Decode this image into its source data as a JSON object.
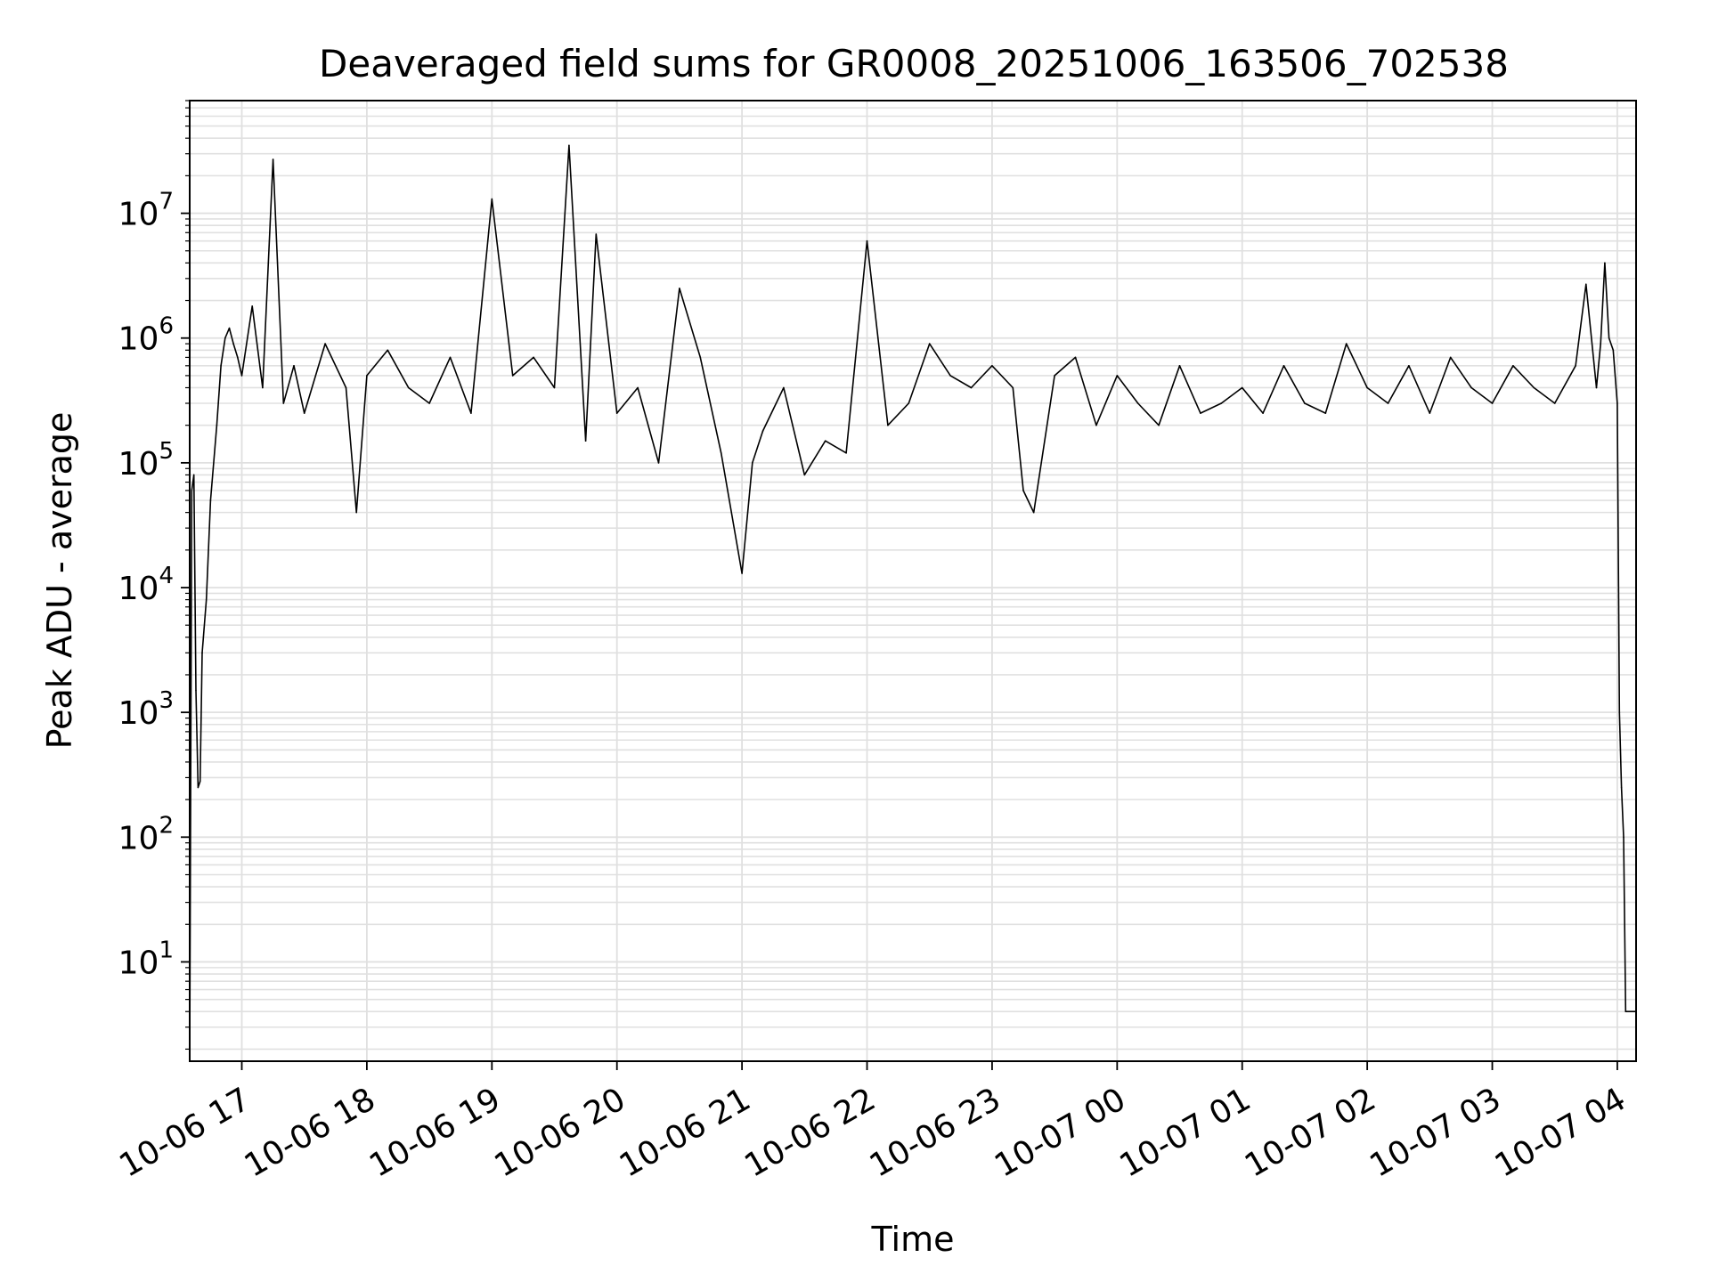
{
  "chart_data": {
    "type": "line",
    "title": "Deaveraged field sums for GR0008_20251006_163506_702538",
    "xlabel": "Time",
    "ylabel": "Peak ADU - average",
    "yscale": "log",
    "grid": true,
    "legend": "none",
    "line_color": "#000000",
    "grid_color": "#e0e0e0",
    "xlim": [
      "2025-10-06 16:35",
      "2025-10-07 04:09"
    ],
    "ylim": [
      1.6,
      80000000
    ],
    "x_ticks": [
      "10-06 17",
      "10-06 18",
      "10-06 19",
      "10-06 20",
      "10-06 21",
      "10-06 22",
      "10-06 23",
      "10-07 00",
      "10-07 01",
      "10-07 02",
      "10-07 03",
      "10-07 04"
    ],
    "y_ticks": [
      {
        "base": "10",
        "exp": "1"
      },
      {
        "base": "10",
        "exp": "2"
      },
      {
        "base": "10",
        "exp": "3"
      },
      {
        "base": "10",
        "exp": "4"
      },
      {
        "base": "10",
        "exp": "5"
      },
      {
        "base": "10",
        "exp": "6"
      },
      {
        "base": "10",
        "exp": "7"
      }
    ],
    "series": [
      {
        "x": [
          "2025-10-06 16:35",
          "2025-10-06 16:36",
          "2025-10-06 16:37",
          "2025-10-06 16:38",
          "2025-10-06 16:39",
          "2025-10-06 16:40",
          "2025-10-06 16:41",
          "2025-10-06 16:43",
          "2025-10-06 16:45",
          "2025-10-06 16:48",
          "2025-10-06 16:50",
          "2025-10-06 16:52",
          "2025-10-06 16:54",
          "2025-10-06 16:56",
          "2025-10-06 16:58",
          "2025-10-06 17:00",
          "2025-10-06 17:05",
          "2025-10-06 17:10",
          "2025-10-06 17:15",
          "2025-10-06 17:20",
          "2025-10-06 17:25",
          "2025-10-06 17:30",
          "2025-10-06 17:40",
          "2025-10-06 17:50",
          "2025-10-06 17:55",
          "2025-10-06 18:00",
          "2025-10-06 18:10",
          "2025-10-06 18:20",
          "2025-10-06 18:30",
          "2025-10-06 18:40",
          "2025-10-06 18:50",
          "2025-10-06 19:00",
          "2025-10-06 19:10",
          "2025-10-06 19:20",
          "2025-10-06 19:30",
          "2025-10-06 19:37",
          "2025-10-06 19:45",
          "2025-10-06 19:50",
          "2025-10-06 20:00",
          "2025-10-06 20:10",
          "2025-10-06 20:20",
          "2025-10-06 20:30",
          "2025-10-06 20:40",
          "2025-10-06 20:50",
          "2025-10-06 21:00",
          "2025-10-06 21:05",
          "2025-10-06 21:10",
          "2025-10-06 21:20",
          "2025-10-06 21:30",
          "2025-10-06 21:40",
          "2025-10-06 21:50",
          "2025-10-06 22:00",
          "2025-10-06 22:10",
          "2025-10-06 22:20",
          "2025-10-06 22:30",
          "2025-10-06 22:40",
          "2025-10-06 22:50",
          "2025-10-06 23:00",
          "2025-10-06 23:10",
          "2025-10-06 23:15",
          "2025-10-06 23:20",
          "2025-10-06 23:30",
          "2025-10-06 23:40",
          "2025-10-06 23:50",
          "2025-10-07 00:00",
          "2025-10-07 00:10",
          "2025-10-07 00:20",
          "2025-10-07 00:30",
          "2025-10-07 00:40",
          "2025-10-07 00:50",
          "2025-10-07 01:00",
          "2025-10-07 01:10",
          "2025-10-07 01:20",
          "2025-10-07 01:30",
          "2025-10-07 01:40",
          "2025-10-07 01:50",
          "2025-10-07 02:00",
          "2025-10-07 02:10",
          "2025-10-07 02:20",
          "2025-10-07 02:30",
          "2025-10-07 02:40",
          "2025-10-07 02:50",
          "2025-10-07 03:00",
          "2025-10-07 03:10",
          "2025-10-07 03:20",
          "2025-10-07 03:30",
          "2025-10-07 03:40",
          "2025-10-07 03:45",
          "2025-10-07 03:50",
          "2025-10-07 03:52",
          "2025-10-07 03:54",
          "2025-10-07 03:56",
          "2025-10-07 03:58",
          "2025-10-07 04:00",
          "2025-10-07 04:01",
          "2025-10-07 04:02",
          "2025-10-07 04:03",
          "2025-10-07 04:04",
          "2025-10-07 04:09"
        ],
        "y": [
          1.7,
          60000,
          80000,
          1500,
          250,
          280,
          3000,
          8000,
          50000,
          200000,
          600000,
          1000000,
          1200000,
          900000,
          700000,
          500000,
          1800000,
          400000,
          27000000,
          300000,
          600000,
          250000,
          900000,
          400000,
          40000,
          500000,
          800000,
          400000,
          300000,
          700000,
          250000,
          13000000,
          500000,
          700000,
          400000,
          35000000,
          150000,
          6800000,
          250000,
          400000,
          100000,
          2500000,
          700000,
          120000,
          13000,
          100000,
          180000,
          400000,
          80000,
          150000,
          120000,
          6000000,
          200000,
          300000,
          900000,
          500000,
          400000,
          600000,
          400000,
          60000,
          40000,
          500000,
          700000,
          200000,
          500000,
          300000,
          200000,
          600000,
          250000,
          300000,
          400000,
          250000,
          600000,
          300000,
          250000,
          900000,
          400000,
          300000,
          600000,
          250000,
          700000,
          400000,
          300000,
          600000,
          400000,
          300000,
          600000,
          2700000,
          400000,
          900000,
          4000000,
          1000000,
          800000,
          300000,
          1000,
          250,
          100,
          4,
          4
        ]
      }
    ]
  }
}
